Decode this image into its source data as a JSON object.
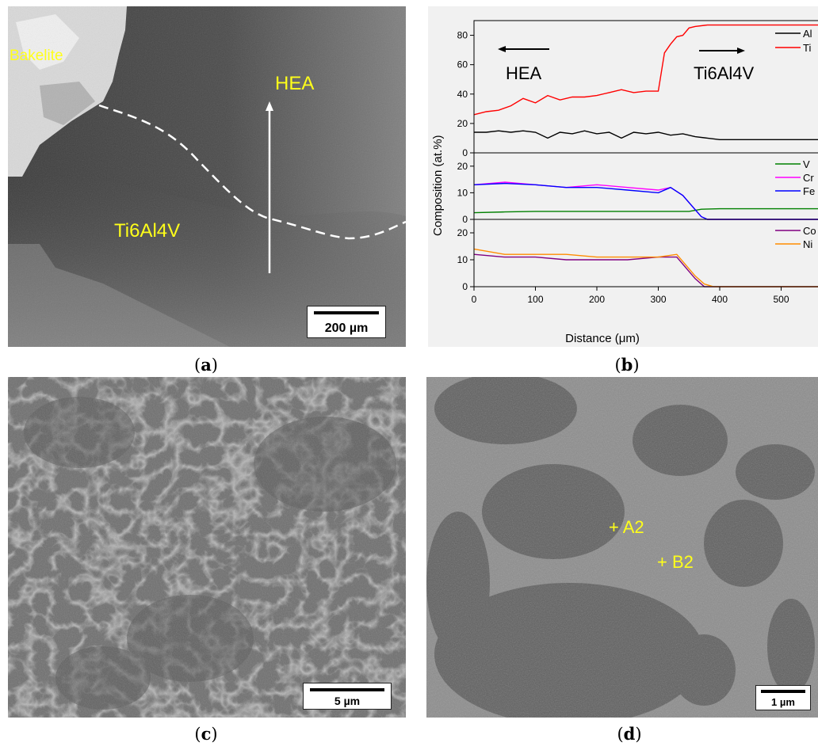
{
  "panels": {
    "a": {
      "caption_letter": "a",
      "labels": {
        "bakelite": "Bakelite",
        "hea": "HEA",
        "ti": "Ti6Al4V"
      },
      "scale_bar": "200 µm"
    },
    "b": {
      "caption_letter": "b",
      "annotations": {
        "hea": "HEA",
        "ti": "Ti6Al4V"
      }
    },
    "c": {
      "caption_letter": "c",
      "scale_bar": "5 µm"
    },
    "d": {
      "caption_letter": "d",
      "markers": {
        "a2": "+ A2",
        "b2": "+ B2"
      },
      "scale_bar": "1 µm"
    }
  },
  "colors": {
    "Al": "#000000",
    "Ti": "#ff0000",
    "V": "#008000",
    "Cr": "#ff00ff",
    "Fe": "#0000ff",
    "Co": "#800080",
    "Ni": "#ff8c00",
    "label_yellow": "#ffff1a"
  },
  "chart_data": {
    "type": "line",
    "xlabel": "Distance (μm)",
    "ylabel": "Composition (at.%)",
    "xlim": [
      0,
      560
    ],
    "xticks": [
      "0",
      "100",
      "200",
      "300",
      "400",
      "500"
    ],
    "legend_placement": "top-right of each subplot",
    "subplots": [
      {
        "ylim": [
          0,
          90
        ],
        "yticks": [
          "0",
          "20",
          "40",
          "60",
          "80"
        ],
        "series": [
          {
            "name": "Al",
            "x": [
              0,
              20,
              40,
              60,
              80,
              100,
              120,
              140,
              160,
              180,
              200,
              220,
              240,
              260,
              280,
              300,
              320,
              340,
              360,
              380,
              400,
              450,
              500,
              560
            ],
            "y": [
              14,
              14,
              15,
              14,
              15,
              14,
              10,
              14,
              13,
              15,
              13,
              14,
              10,
              14,
              13,
              14,
              12,
              13,
              11,
              10,
              9,
              9,
              9,
              9
            ]
          },
          {
            "name": "Ti",
            "x": [
              0,
              20,
              40,
              60,
              80,
              100,
              120,
              140,
              160,
              180,
              200,
              220,
              240,
              260,
              280,
              300,
              310,
              320,
              330,
              340,
              350,
              360,
              380,
              400,
              450,
              500,
              560
            ],
            "y": [
              26,
              28,
              29,
              32,
              37,
              34,
              39,
              36,
              38,
              38,
              39,
              41,
              43,
              41,
              42,
              42,
              68,
              74,
              79,
              80,
              85,
              86,
              87,
              87,
              87,
              87,
              87
            ]
          }
        ]
      },
      {
        "ylim": [
          0,
          25
        ],
        "yticks": [
          "0",
          "10",
          "20"
        ],
        "series": [
          {
            "name": "V",
            "x": [
              0,
              50,
              100,
              150,
              200,
              250,
              300,
              350,
              370,
              400,
              450,
              500,
              560
            ],
            "y": [
              2.5,
              2.8,
              3,
              3,
              3,
              3,
              3,
              3,
              3.8,
              4,
              4,
              4,
              4
            ]
          },
          {
            "name": "Cr",
            "x": [
              0,
              50,
              100,
              150,
              200,
              250,
              300,
              320,
              340,
              355,
              370,
              380,
              400,
              560
            ],
            "y": [
              13,
              14,
              13,
              12,
              13,
              12,
              11,
              12,
              9,
              5,
              1,
              0,
              0,
              0
            ]
          },
          {
            "name": "Fe",
            "x": [
              0,
              50,
              100,
              150,
              200,
              250,
              300,
              320,
              340,
              355,
              370,
              380,
              400,
              560
            ],
            "y": [
              13,
              13.5,
              13,
              12,
              12,
              11,
              10,
              12,
              9,
              5,
              1,
              0,
              0,
              0
            ]
          }
        ]
      },
      {
        "ylim": [
          0,
          25
        ],
        "yticks": [
          "0",
          "10",
          "20"
        ],
        "series": [
          {
            "name": "Co",
            "x": [
              0,
              50,
              100,
              150,
              200,
              250,
              300,
              330,
              345,
              360,
              375,
              390,
              560
            ],
            "y": [
              12,
              11,
              11,
              10,
              10,
              10,
              11,
              11,
              7,
              3,
              0,
              0,
              0
            ]
          },
          {
            "name": "Ni",
            "x": [
              0,
              50,
              100,
              150,
              200,
              250,
              300,
              330,
              345,
              360,
              375,
              390,
              560
            ],
            "y": [
              14,
              12,
              12,
              12,
              11,
              11,
              11,
              12,
              8,
              4,
              1,
              0,
              0
            ]
          }
        ]
      }
    ]
  }
}
